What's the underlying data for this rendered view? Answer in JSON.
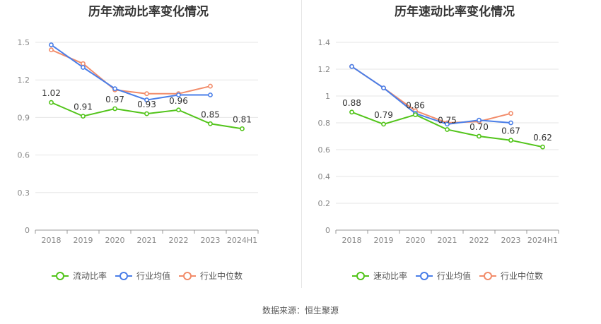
{
  "source": "数据来源：恒生聚源",
  "colors": {
    "main": "#52c41a",
    "avg": "#4a7ee8",
    "median": "#f28c6a",
    "grid": "#e6e6e6",
    "axis": "#999999"
  },
  "chart_data": [
    {
      "type": "line",
      "title": "历年流动比率变化情况",
      "categories": [
        "2018",
        "2019",
        "2020",
        "2021",
        "2022",
        "2023",
        "2024H1"
      ],
      "ylim": [
        0,
        1.5
      ],
      "yticks": [
        "0",
        "0.3",
        "0.6",
        "0.9",
        "1.2",
        "1.5"
      ],
      "grid": true,
      "legend_position": "bottom",
      "series": [
        {
          "name": "流动比率",
          "values": [
            1.02,
            0.91,
            0.97,
            0.93,
            0.96,
            0.85,
            0.81
          ],
          "labels": [
            "1.02",
            "0.91",
            "0.97",
            "0.93",
            "0.96",
            "0.85",
            "0.81"
          ]
        },
        {
          "name": "行业均值",
          "values": [
            1.48,
            1.3,
            1.13,
            1.04,
            1.08,
            1.08,
            null
          ]
        },
        {
          "name": "行业中位数",
          "values": [
            1.44,
            1.33,
            1.12,
            1.09,
            1.09,
            1.15,
            null
          ]
        }
      ]
    },
    {
      "type": "line",
      "title": "历年速动比率变化情况",
      "categories": [
        "2018",
        "2019",
        "2020",
        "2021",
        "2022",
        "2023",
        "2024H1"
      ],
      "ylim": [
        0,
        1.4
      ],
      "yticks": [
        "0",
        "0.2",
        "0.4",
        "0.6",
        "0.8",
        "1",
        "1.2",
        "1.4"
      ],
      "grid": true,
      "legend_position": "bottom",
      "series": [
        {
          "name": "速动比率",
          "values": [
            0.88,
            0.79,
            0.86,
            0.75,
            0.7,
            0.67,
            0.62
          ],
          "labels": [
            "0.88",
            "0.79",
            "0.86",
            "0.75",
            "0.70",
            "0.67",
            "0.62"
          ]
        },
        {
          "name": "行业均值",
          "values": [
            1.22,
            1.06,
            0.87,
            0.79,
            0.82,
            0.8,
            null
          ]
        },
        {
          "name": "行业中位数",
          "values": [
            1.22,
            1.06,
            0.89,
            0.8,
            0.81,
            0.87,
            null
          ]
        }
      ]
    }
  ]
}
